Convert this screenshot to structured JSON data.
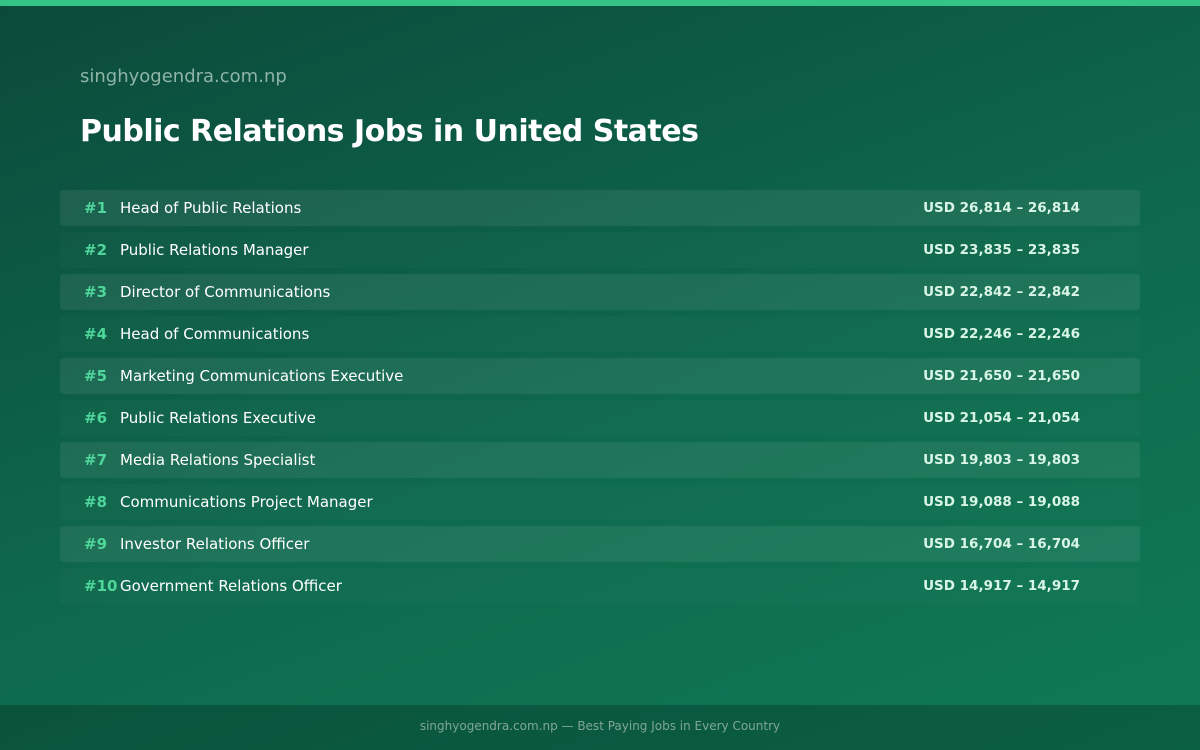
{
  "header": {
    "site": "singhyogendra.com.np",
    "title": "Public Relations Jobs in United States"
  },
  "rows": [
    {
      "rank": "#1",
      "job": "Head of Public Relations",
      "salary": "USD 26,814 – 26,814"
    },
    {
      "rank": "#2",
      "job": "Public Relations Manager",
      "salary": "USD 23,835 – 23,835"
    },
    {
      "rank": "#3",
      "job": "Director of Communications",
      "salary": "USD 22,842 – 22,842"
    },
    {
      "rank": "#4",
      "job": "Head of Communications",
      "salary": "USD 22,246 – 22,246"
    },
    {
      "rank": "#5",
      "job": "Marketing Communications Executive",
      "salary": "USD 21,650 – 21,650"
    },
    {
      "rank": "#6",
      "job": "Public Relations Executive",
      "salary": "USD 21,054 – 21,054"
    },
    {
      "rank": "#7",
      "job": "Media Relations Specialist",
      "salary": "USD 19,803 – 19,803"
    },
    {
      "rank": "#8",
      "job": "Communications Project Manager",
      "salary": "USD 19,088 – 19,088"
    },
    {
      "rank": "#9",
      "job": "Investor Relations Officer",
      "salary": "USD 16,704 – 16,704"
    },
    {
      "rank": "#10",
      "job": "Government Relations Officer",
      "salary": "USD 14,917 – 14,917"
    }
  ],
  "footer": {
    "text": "singhyogendra.com.np — Best Paying Jobs in Every Country"
  }
}
